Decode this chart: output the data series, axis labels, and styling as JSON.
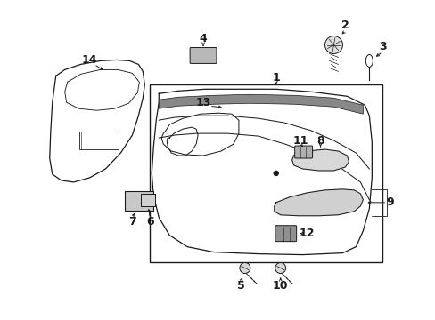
{
  "bg_color": "#ffffff",
  "line_color": "#1a1a1a",
  "fig_width": 4.89,
  "fig_height": 3.6,
  "dpi": 100,
  "font_size_label": 9
}
